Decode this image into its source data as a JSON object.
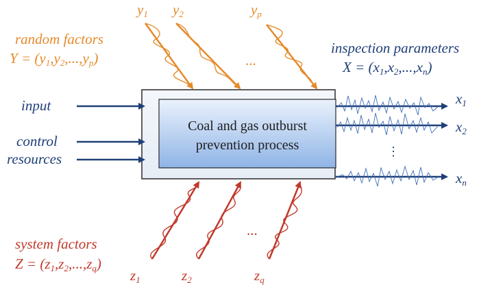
{
  "process": {
    "line1": "Coal and gas outburst",
    "line2": "prevention process"
  },
  "inputs": [
    "input",
    "control",
    "resources"
  ],
  "random_factors": {
    "title": "random factors",
    "formula": {
      "lhs": "Y",
      "eq": " = (",
      "v1": "y",
      "s1": "1",
      "v2": "y",
      "s2": "2",
      "dots": ",...,",
      "v3": "y",
      "s3": "p",
      "close": ")"
    },
    "arrows": [
      {
        "var": "y",
        "sub": "1"
      },
      {
        "var": "y",
        "sub": "2"
      },
      {
        "var": "y",
        "sub": "p"
      }
    ],
    "ellipsis": "..."
  },
  "inspection": {
    "title": "inspection parameters",
    "formula": {
      "lhs": "X",
      "eq": " = (",
      "v1": "x",
      "s1": "1",
      "v2": "x",
      "s2": "2",
      "dots": ",...,",
      "v3": "x",
      "s3": "n",
      "close": ")"
    },
    "outputs": [
      {
        "var": "x",
        "sub": "1"
      },
      {
        "var": "x",
        "sub": "2"
      },
      {
        "var": "x",
        "sub": "n"
      }
    ],
    "ellipsis": "⋮"
  },
  "system_factors": {
    "title": "system factors",
    "formula": {
      "lhs": "Z",
      "eq": " = (",
      "v1": "z",
      "s1": "1",
      "v2": "z",
      "s2": "2",
      "dots": ",...,",
      "v3": "z",
      "s3": "q",
      "close": ")"
    },
    "arrows": [
      {
        "var": "z",
        "sub": "1"
      },
      {
        "var": "z",
        "sub": "2"
      },
      {
        "var": "z",
        "sub": "q"
      }
    ],
    "ellipsis": "..."
  },
  "colors": {
    "navy": "#1f3f78",
    "orange": "#e58a2a",
    "red": "#c0392b",
    "box_fill": "#b9d1f0",
    "box_border": "#2a2a2a"
  }
}
